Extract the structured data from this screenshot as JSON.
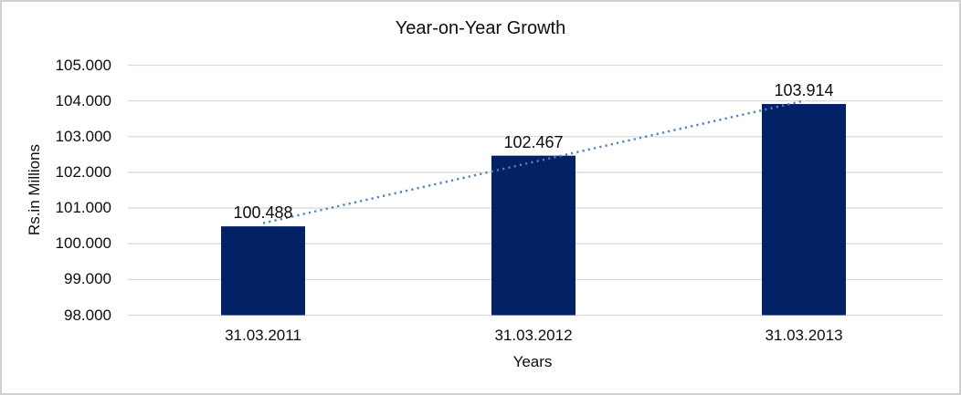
{
  "window": {
    "background": "#ffffff",
    "border_color": "#d0d0d0"
  },
  "chart_data": {
    "type": "bar",
    "title": "Year-on-Year Growth",
    "xlabel": "Years",
    "ylabel": "Rs.in Millions",
    "categories": [
      "31.03.2011",
      "31.03.2012",
      "31.03.2013"
    ],
    "values": [
      100.488,
      102.467,
      103.914
    ],
    "data_labels": [
      "100.488",
      "102.467",
      "103.914"
    ],
    "ylim": [
      98,
      105
    ],
    "ytick_step": 1,
    "ytick_labels": [
      "98.000",
      "99.000",
      "100.000",
      "101.000",
      "102.000",
      "103.000",
      "104.000",
      "105.000"
    ],
    "grid": true,
    "legend": false,
    "bar_color": "#032265",
    "gridline_color": "#d9d9d9",
    "text_color": "#0d0d0d",
    "trendline": {
      "type": "linear",
      "style": "dotted",
      "color": "#4F81BD"
    }
  }
}
